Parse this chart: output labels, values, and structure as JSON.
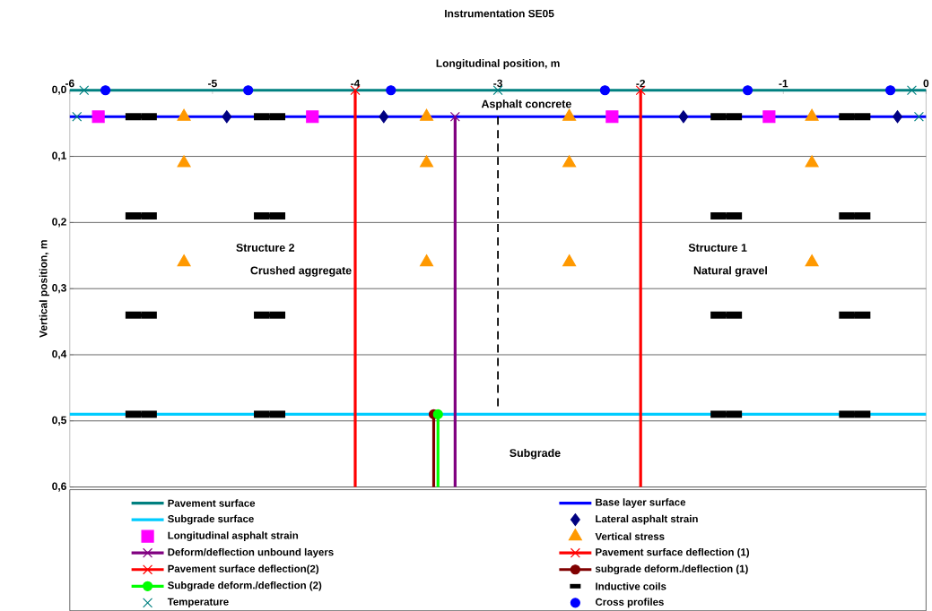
{
  "chart_data": {
    "type": "line",
    "title": "Instrumentation SE05",
    "xlabel": "Longitudinal position, m",
    "ylabel": "Vertical position, m",
    "xlim": [
      -6,
      0
    ],
    "xticks": [
      -6,
      -5,
      -4,
      -3,
      -2,
      -1,
      0
    ],
    "ylim": [
      0.6,
      0
    ],
    "yticks": [
      {
        "value": 0,
        "label": "0,0"
      },
      {
        "value": 0.1,
        "label": "0,1"
      },
      {
        "value": 0.2,
        "label": "0,2"
      },
      {
        "value": 0.3,
        "label": "0,3"
      },
      {
        "value": 0.4,
        "label": "0,4"
      },
      {
        "value": 0.5,
        "label": "0,5"
      },
      {
        "value": 0.6,
        "label": "0,6"
      }
    ],
    "grid": "y",
    "legend": "bottom",
    "series": [
      {
        "name": "Pavement surface",
        "color": "#008080",
        "marker": "none",
        "x": [
          -6,
          0
        ],
        "values": [
          0,
          0
        ]
      },
      {
        "name": "Base layer surface",
        "color": "#0000ff",
        "marker": "none",
        "x": [
          -6,
          0
        ],
        "values": [
          0.04,
          0.04
        ]
      },
      {
        "name": "Subgrade surface",
        "color": "#00ccff",
        "marker": "none",
        "x": [
          -6,
          0
        ],
        "values": [
          0.49,
          0.49
        ]
      },
      {
        "name": "Lateral asphalt strain",
        "type": "scatter",
        "color": "#000080",
        "marker": "diamond",
        "x": [
          -4.9,
          -3.8,
          -1.7,
          -0.2
        ],
        "values": [
          0.04,
          0.04,
          0.04,
          0.04
        ]
      },
      {
        "name": "Longitudinal asphalt strain",
        "type": "scatter",
        "color": "#ff00ff",
        "marker": "square",
        "x": [
          -5.8,
          -4.3,
          -2.2,
          -1.1
        ],
        "values": [
          0.04,
          0.04,
          0.04,
          0.04
        ]
      },
      {
        "name": "Vertical stress",
        "type": "scatter",
        "color": "#ff9900",
        "marker": "triangle",
        "x": [
          -5.2,
          -3.5,
          -2.5,
          -0.8,
          -5.2,
          -3.5,
          -2.5,
          -0.8,
          -5.2,
          -3.5,
          -2.5,
          -0.8
        ],
        "values": [
          0.04,
          0.04,
          0.04,
          0.04,
          0.11,
          0.11,
          0.11,
          0.11,
          0.26,
          0.26,
          0.26,
          0.26
        ]
      },
      {
        "name": "Deform/deflection unbound layers",
        "type": "line",
        "color": "#800080",
        "marker": "cross",
        "x": [
          -3.3,
          -3.3
        ],
        "values": [
          0.04,
          0.6
        ]
      },
      {
        "name": "Pavement surface deflection (1)",
        "type": "line",
        "color": "#ff0000",
        "marker": "cross",
        "x": [
          -2,
          -2
        ],
        "values": [
          0,
          0.6
        ]
      },
      {
        "name": "Pavement surface deflection(2)",
        "type": "line",
        "color": "#ff0000",
        "marker": "cross",
        "x": [
          -4,
          -4
        ],
        "values": [
          0,
          0.6
        ]
      },
      {
        "name": "subgrade deform./deflection (1)",
        "type": "line",
        "color": "#800000",
        "marker": "circle",
        "x": [
          -3.45,
          -3.45
        ],
        "values": [
          0.49,
          0.6
        ]
      },
      {
        "name": "Subgrade deform./deflection (2)",
        "type": "line",
        "color": "#00ff00",
        "marker": "circle",
        "x": [
          -3.42,
          -3.42
        ],
        "values": [
          0.49,
          0.6
        ]
      },
      {
        "name": "Inductive coils",
        "type": "scatter",
        "color": "#000000",
        "marker": "none",
        "xerrors": [
          0.11,
          0.11,
          0.11,
          0.11,
          0.11,
          0.11,
          0.11,
          0.11,
          0.11,
          0.11,
          0.11,
          0.11,
          0.11,
          0.11,
          0.11,
          0.11
        ],
        "x": [
          -5.5,
          -4.6,
          -1.4,
          -0.5,
          -5.5,
          -4.6,
          -1.4,
          -0.5,
          -5.5,
          -4.6,
          -1.4,
          -0.5,
          -5.5,
          -4.6,
          -1.4,
          -0.5
        ],
        "values": [
          0.04,
          0.04,
          0.04,
          0.04,
          0.19,
          0.19,
          0.19,
          0.19,
          0.34,
          0.34,
          0.34,
          0.34,
          0.49,
          0.49,
          0.49,
          0.49
        ]
      },
      {
        "name": "Temperature",
        "type": "scatter",
        "color": "#008080",
        "marker": "cross",
        "x": [
          -5.9,
          -3.0,
          -0.1,
          -5.95,
          -0.05
        ],
        "values": [
          0,
          0,
          0,
          0.04,
          0.04
        ]
      },
      {
        "name": "Cross profiles",
        "type": "scatter",
        "color": "#0000ff",
        "marker": "circle",
        "x": [
          -5.75,
          -4.75,
          -3.75,
          -2.25,
          -1.25,
          -0.25
        ],
        "values": [
          0,
          0,
          0,
          0,
          0,
          0
        ]
      },
      {
        "type": "line",
        "color": "#000000",
        "marker": "none",
        "line_style": "dashed",
        "x": [
          -3,
          -3
        ],
        "values": [
          0.04,
          0.48
        ]
      }
    ],
    "annotations": [
      "Asphalt concrete",
      "Structure 2",
      "Crushed aggregate",
      "Structure 1",
      "Natural gravel",
      "Subgrade"
    ]
  }
}
